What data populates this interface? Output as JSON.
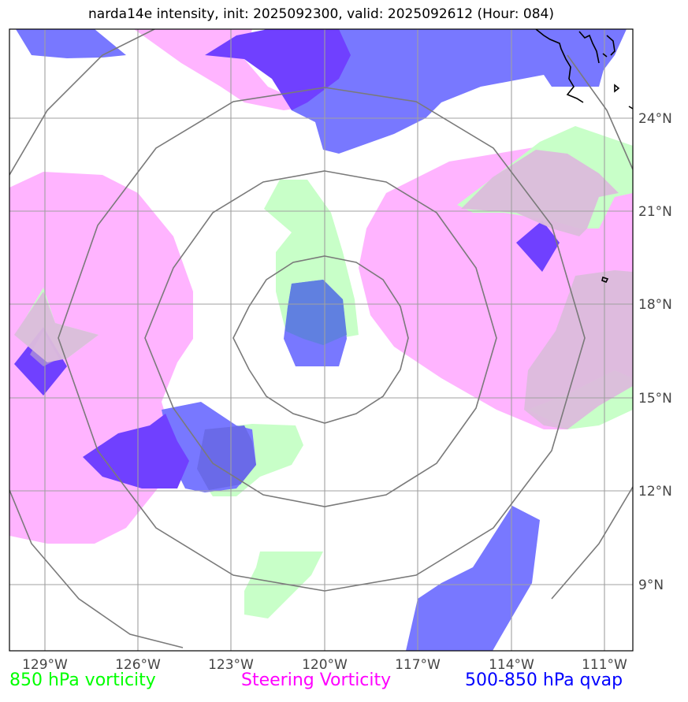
{
  "title": "narda14e intensity, init: 2025092300, valid: 2025092612 (Hour: 084)",
  "map": {
    "region": "Eastern North Pacific",
    "center": {
      "lat": 17,
      "lon": -120
    },
    "extent": {
      "lon": [
        -130.2,
        -110.1
      ],
      "lat": [
        6.9,
        26.9
      ]
    },
    "range_rings": 4,
    "gridlines": true
  },
  "lon_ticks": [
    {
      "lon": -129,
      "label": "129°W"
    },
    {
      "lon": -126,
      "label": "126°W"
    },
    {
      "lon": -123,
      "label": "123°W"
    },
    {
      "lon": -120,
      "label": "120°W"
    },
    {
      "lon": -117,
      "label": "117°W"
    },
    {
      "lon": -114,
      "label": "114°W"
    },
    {
      "lon": -111,
      "label": "111°W"
    }
  ],
  "lat_ticks": [
    {
      "lat": 24,
      "label": "24°N"
    },
    {
      "lat": 21,
      "label": "21°N"
    },
    {
      "lat": 18,
      "label": "18°N"
    },
    {
      "lat": 15,
      "label": "15°N"
    },
    {
      "lat": 12,
      "label": "12°N"
    },
    {
      "lat": 9,
      "label": "9°N"
    }
  ],
  "legend": [
    {
      "label": "850 hPa vorticity",
      "color": "#00ff00",
      "fill": "#c8ffc8"
    },
    {
      "label": "Steering Vorticity",
      "color": "#ff00ff",
      "fill": "#ffb4ff"
    },
    {
      "label": "500-850 hPa qvap",
      "color": "#0000ff",
      "fill": "#6464ff"
    }
  ]
}
